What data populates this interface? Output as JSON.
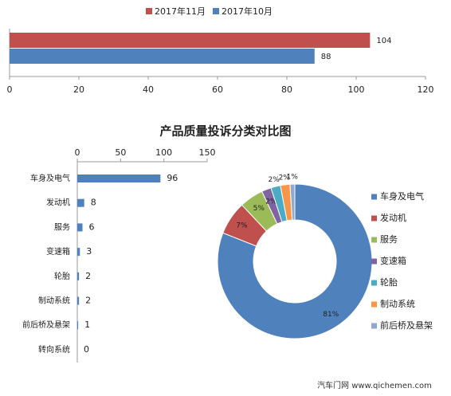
{
  "chart_data": [
    {
      "type": "bar",
      "orientation": "horizontal",
      "series": [
        {
          "name": "2017年11月",
          "color": "#c0504d",
          "values": [
            104
          ]
        },
        {
          "name": "2017年10月",
          "color": "#4f81bd",
          "values": [
            88
          ]
        }
      ],
      "xlim": [
        0,
        120
      ],
      "xticks": [
        0,
        20,
        40,
        60,
        80,
        100,
        120
      ],
      "legend": "top"
    },
    {
      "type": "bar",
      "orientation": "horizontal",
      "title": "产品质量投诉分类对比图",
      "categories": [
        "车身及电气",
        "发动机",
        "服务",
        "变速箱",
        "轮胎",
        "制动系统",
        "前后桥及悬架",
        "转向系统"
      ],
      "values": [
        96,
        8,
        6,
        3,
        2,
        2,
        1,
        0
      ],
      "color": "#4f81bd",
      "xlim": [
        0,
        150
      ],
      "xticks": [
        0,
        50,
        100,
        150
      ]
    },
    {
      "type": "donut",
      "categories": [
        "车身及电气",
        "发动机",
        "服务",
        "变速箱",
        "轮胎",
        "制动系统",
        "前后桥及悬架"
      ],
      "values": [
        81,
        7,
        5,
        2,
        2,
        2,
        1
      ],
      "value_labels": [
        "81%",
        "7%",
        "5%",
        "2%",
        "2%",
        "2%",
        "1%"
      ],
      "colors": [
        "#4f81bd",
        "#c0504d",
        "#9bbb59",
        "#8064a2",
        "#4bacc6",
        "#f79646",
        "#92a9cf"
      ],
      "legend": "right"
    }
  ],
  "watermark": "汽车门网 www.qichemen.com"
}
